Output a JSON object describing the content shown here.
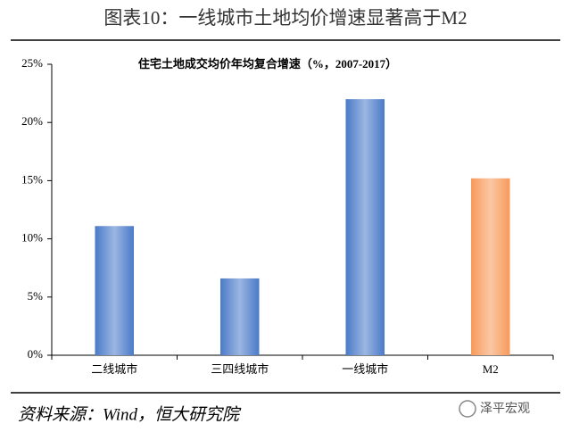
{
  "chart_data": {
    "type": "bar",
    "title": "图表10：一线城市土地均价增速显著高于M2",
    "subtitle": "住宅土地成交均价年均复合增速（%，2007-2017）",
    "categories": [
      "二线城市",
      "三四线城市",
      "一线城市",
      "M2"
    ],
    "values": [
      11.1,
      6.6,
      22.0,
      15.2
    ],
    "colors": [
      "#4a7ac8",
      "#4a7ac8",
      "#4a7ac8",
      "#f79a5a"
    ],
    "ylim": [
      0,
      25
    ],
    "yticks": [
      {
        "value": 0,
        "label": "0%"
      },
      {
        "value": 5,
        "label": "5%"
      },
      {
        "value": 10,
        "label": "10%"
      },
      {
        "value": 15,
        "label": "15%"
      },
      {
        "value": 20,
        "label": "20%"
      },
      {
        "value": 25,
        "label": "25%"
      }
    ],
    "grid": false
  },
  "footer": {
    "source": "资料来源：Wind，恒大研究院",
    "watermark": "泽平宏观"
  }
}
